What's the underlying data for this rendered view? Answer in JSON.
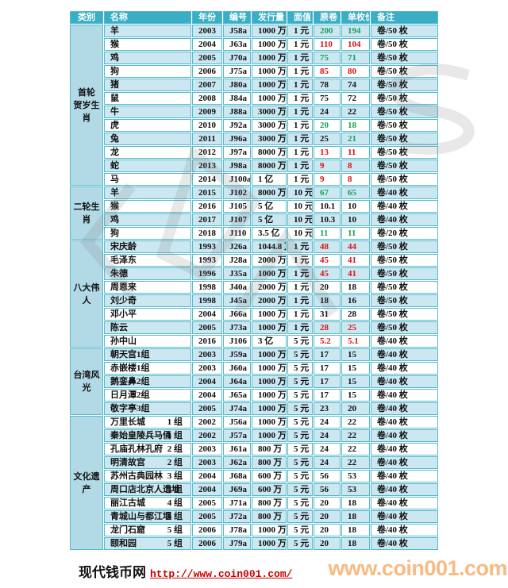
{
  "colors": {
    "header_bg": "#3aaec5",
    "row_alt_bg": "#cbe7f1",
    "category_bg": "#b2dae6",
    "border": "#55bacc",
    "price_up_green": "#1a9e54",
    "price_down_red": "#dd1111",
    "link_red": "#cc0000",
    "watermark_orange": "#f9ba82"
  },
  "table": {
    "columns": [
      "类别",
      "名称",
      "年份",
      "编号",
      "发行量",
      "面值",
      "原卷",
      "单枚价",
      "备注"
    ],
    "sections": [
      {
        "category": "首轮\n贺岁生肖",
        "rows": [
          {
            "name": "羊",
            "year": "2003",
            "code": "J58a",
            "issue": "1000 万",
            "face": "1 元",
            "roll": "200",
            "single": "194",
            "rc": "up",
            "sc": "up",
            "note": "卷/50 枚"
          },
          {
            "name": "猴",
            "year": "2004",
            "code": "J63a",
            "issue": "1000 万",
            "face": "1 元",
            "roll": "110",
            "single": "104",
            "rc": "down",
            "sc": "down",
            "note": "卷/50 枚"
          },
          {
            "name": "鸡",
            "year": "2005",
            "code": "J70a",
            "issue": "1000 万",
            "face": "1 元",
            "roll": "75",
            "single": "71",
            "rc": "up",
            "sc": "up",
            "note": "卷/50 枚"
          },
          {
            "name": "狗",
            "year": "2006",
            "code": "J75a",
            "issue": "1000 万",
            "face": "1 元",
            "roll": "85",
            "single": "80",
            "rc": "down",
            "sc": "down",
            "note": "卷/50 枚"
          },
          {
            "name": "猪",
            "year": "2007",
            "code": "J80a",
            "issue": "1000 万",
            "face": "1 元",
            "roll": "78",
            "single": "74",
            "note": "卷/50 枚"
          },
          {
            "name": "鼠",
            "year": "2008",
            "code": "J84a",
            "issue": "1000 万",
            "face": "1 元",
            "roll": "75",
            "single": "72",
            "note": "卷/50 枚"
          },
          {
            "name": "牛",
            "year": "2009",
            "code": "J88a",
            "issue": "3000 万",
            "face": "1 元",
            "roll": "24",
            "single": "22",
            "note": "卷/50 枚"
          },
          {
            "name": "虎",
            "year": "2010",
            "code": "J92a",
            "issue": "3000 万",
            "face": "1 元",
            "roll": "20",
            "single": "18",
            "rc": "up",
            "sc": "up",
            "note": "卷/50 枚"
          },
          {
            "name": "兔",
            "year": "2011",
            "code": "J96a",
            "issue": "3000 万",
            "face": "1 元",
            "roll": "25",
            "single": "21",
            "sc": "up",
            "note": "卷/50 枚"
          },
          {
            "name": "龙",
            "year": "2012",
            "code": "J97a",
            "issue": "8000 万",
            "face": "1 元",
            "roll": "13",
            "single": "11",
            "rc": "down",
            "sc": "down",
            "note": "卷/50 枚"
          },
          {
            "name": "蛇",
            "year": "2013",
            "code": "J98a",
            "issue": "8000 万",
            "face": "1 元",
            "roll": "9",
            "single": "8",
            "rc": "down",
            "sc": "down",
            "note": "卷/50 枚"
          },
          {
            "name": "马",
            "year": "2014",
            "code": "J100a",
            "issue": "1 亿",
            "face": "1 元",
            "roll": "9",
            "single": "8",
            "rc": "down",
            "sc": "down",
            "note": "卷/50 枚"
          }
        ]
      },
      {
        "category": "二轮生肖",
        "rows": [
          {
            "name": "羊",
            "year": "2015",
            "code": "J102",
            "issue": "8000 万",
            "face": "10 元",
            "roll": "67",
            "single": "65",
            "rc": "up",
            "sc": "up",
            "note": "卷/40 枚"
          },
          {
            "name": "猴",
            "year": "2016",
            "code": "J105",
            "issue": "5 亿",
            "face": "10 元",
            "roll": "10.1",
            "single": "10",
            "note": "卷/40 枚"
          },
          {
            "name": "鸡",
            "year": "2017",
            "code": "J107",
            "issue": "5 亿",
            "face": "10 元",
            "roll": "10.3",
            "single": "10",
            "note": "卷/40 枚"
          },
          {
            "name": "狗",
            "year": "2018",
            "code": "J110",
            "issue": "3.5 亿",
            "face": "10 元",
            "roll": "11",
            "single": "11",
            "rc": "up",
            "sc": "up",
            "note": "卷/20 枚"
          }
        ]
      },
      {
        "category": "八大伟人",
        "rows": [
          {
            "name": "宋庆龄",
            "year": "1993",
            "code": "J26a",
            "issue": "1044.8 万",
            "face": "1 元",
            "roll": "48",
            "single": "44",
            "rc": "down",
            "sc": "down",
            "note": "卷/50 枚"
          },
          {
            "name": "毛泽东",
            "year": "1993",
            "code": "J28a",
            "issue": "2000 万",
            "face": "1 元",
            "roll": "45",
            "single": "41",
            "rc": "down",
            "sc": "down",
            "note": "卷/50 枚"
          },
          {
            "name": "朱德",
            "year": "1996",
            "code": "J35a",
            "issue": "1000 万",
            "face": "1 元",
            "roll": "45",
            "single": "41",
            "rc": "down",
            "sc": "down",
            "note": "卷/50 枚"
          },
          {
            "name": "周恩来",
            "year": "1998",
            "code": "J40a",
            "issue": "2000 万",
            "face": "1 元",
            "roll": "20",
            "single": "18",
            "note": "卷/50 枚"
          },
          {
            "name": "刘少奇",
            "year": "1998",
            "code": "J45a",
            "issue": "2000 万",
            "face": "1 元",
            "roll": "18",
            "single": "16",
            "note": "卷/50 枚"
          },
          {
            "name": "邓小平",
            "year": "2004",
            "code": "J66a",
            "issue": "1000 万",
            "face": "1 元",
            "roll": "31",
            "single": "28",
            "note": "卷/50 枚"
          },
          {
            "name": "陈云",
            "year": "2005",
            "code": "J73a",
            "issue": "1000 万",
            "face": "1 元",
            "roll": "28",
            "single": "25",
            "rc": "down",
            "sc": "down",
            "note": "卷/50 枚"
          },
          {
            "name": "孙中山",
            "year": "2016",
            "code": "J106",
            "issue": "3 亿",
            "face": "5 元",
            "roll": "5.2",
            "single": "5.1",
            "rc": "down",
            "sc": "down",
            "note": "卷/40 枚"
          }
        ]
      },
      {
        "category": "台湾风光",
        "rows": [
          {
            "name": "朝天宫1组",
            "year": "2003",
            "code": "J59a",
            "issue": "1000 万",
            "face": "5 元",
            "roll": "17",
            "single": "15",
            "note": "卷/40 枚"
          },
          {
            "name": "赤嵌楼1组",
            "year": "2003",
            "code": "J60a",
            "issue": "1000 万",
            "face": "5 元",
            "roll": "17",
            "single": "15",
            "note": "卷/40 枚"
          },
          {
            "name": "鹅銮鼻2组",
            "year": "2004",
            "code": "J64a",
            "issue": "1000 万",
            "face": "5 元",
            "roll": "17",
            "single": "15",
            "note": "卷/40 枚"
          },
          {
            "name": "日月潭2组",
            "year": "2004",
            "code": "J65a",
            "issue": "1000 万",
            "face": "5 元",
            "roll": "17",
            "single": "15",
            "note": "卷/40 枚"
          },
          {
            "name": "敬字亭3组",
            "year": "2005",
            "code": "J74a",
            "issue": "1000 万",
            "face": "5 元",
            "roll": "23",
            "single": "20",
            "note": "卷/40 枚"
          }
        ]
      },
      {
        "category": "文化遗产",
        "rows": [
          {
            "name": "万里长城",
            "group": "1 组",
            "year": "2002",
            "code": "J56a",
            "issue": "1000 万",
            "face": "5 元",
            "roll": "24",
            "single": "22",
            "note": "卷/40 枚"
          },
          {
            "name": "秦始皇陵兵马俑",
            "group": "1 组",
            "year": "2002",
            "code": "J57a",
            "issue": "1000 万",
            "face": "5 元",
            "roll": "24",
            "single": "22",
            "note": "卷/40 枚"
          },
          {
            "name": "孔庙孔林孔府",
            "group": "2 组",
            "year": "2003",
            "code": "J61a",
            "issue": "800 万",
            "face": "5 元",
            "roll": "24",
            "single": "22",
            "note": "卷/40 枚"
          },
          {
            "name": "明清故宫",
            "group": "2 组",
            "year": "2003",
            "code": "J62a",
            "issue": "800 万",
            "face": "5 元",
            "roll": "24",
            "single": "22",
            "note": "卷/40 枚"
          },
          {
            "name": "苏州古典园林",
            "group": "3 组",
            "year": "2004",
            "code": "J68a",
            "issue": "600 万",
            "face": "5 元",
            "roll": "56",
            "single": "53",
            "note": "卷/40 枚"
          },
          {
            "name": "周口店北京人遗址",
            "group": "3 组",
            "year": "2004",
            "code": "J69a",
            "issue": "600 万",
            "face": "5 元",
            "roll": "56",
            "single": "53",
            "note": "卷/40 枚"
          },
          {
            "name": "丽江古城",
            "group": "4 组",
            "year": "2005",
            "code": "J71a",
            "issue": "800 万",
            "face": "5 元",
            "roll": "20",
            "single": "18",
            "note": "卷/40 枚"
          },
          {
            "name": "青城山与都江堰",
            "group": "4 组",
            "year": "2005",
            "code": "J72a",
            "issue": "800 万",
            "face": "5 元",
            "roll": "20",
            "single": "18",
            "note": "卷/40 枚"
          },
          {
            "name": "龙门石窟",
            "group": "5 组",
            "year": "2006",
            "code": "J78a",
            "issue": "1000 万",
            "face": "5 元",
            "roll": "20",
            "single": "18",
            "note": "卷/40 枚"
          },
          {
            "name": "颐和园",
            "group": "5 组",
            "year": "2006",
            "code": "J79a",
            "issue": "1000 万",
            "face": "5 元",
            "roll": "20",
            "single": "18",
            "note": "卷/40 枚"
          }
        ]
      }
    ]
  },
  "footer": {
    "site_name": "现代钱币网",
    "url": "http://www.coin001.com/",
    "watermark": "www.coin001.com"
  }
}
